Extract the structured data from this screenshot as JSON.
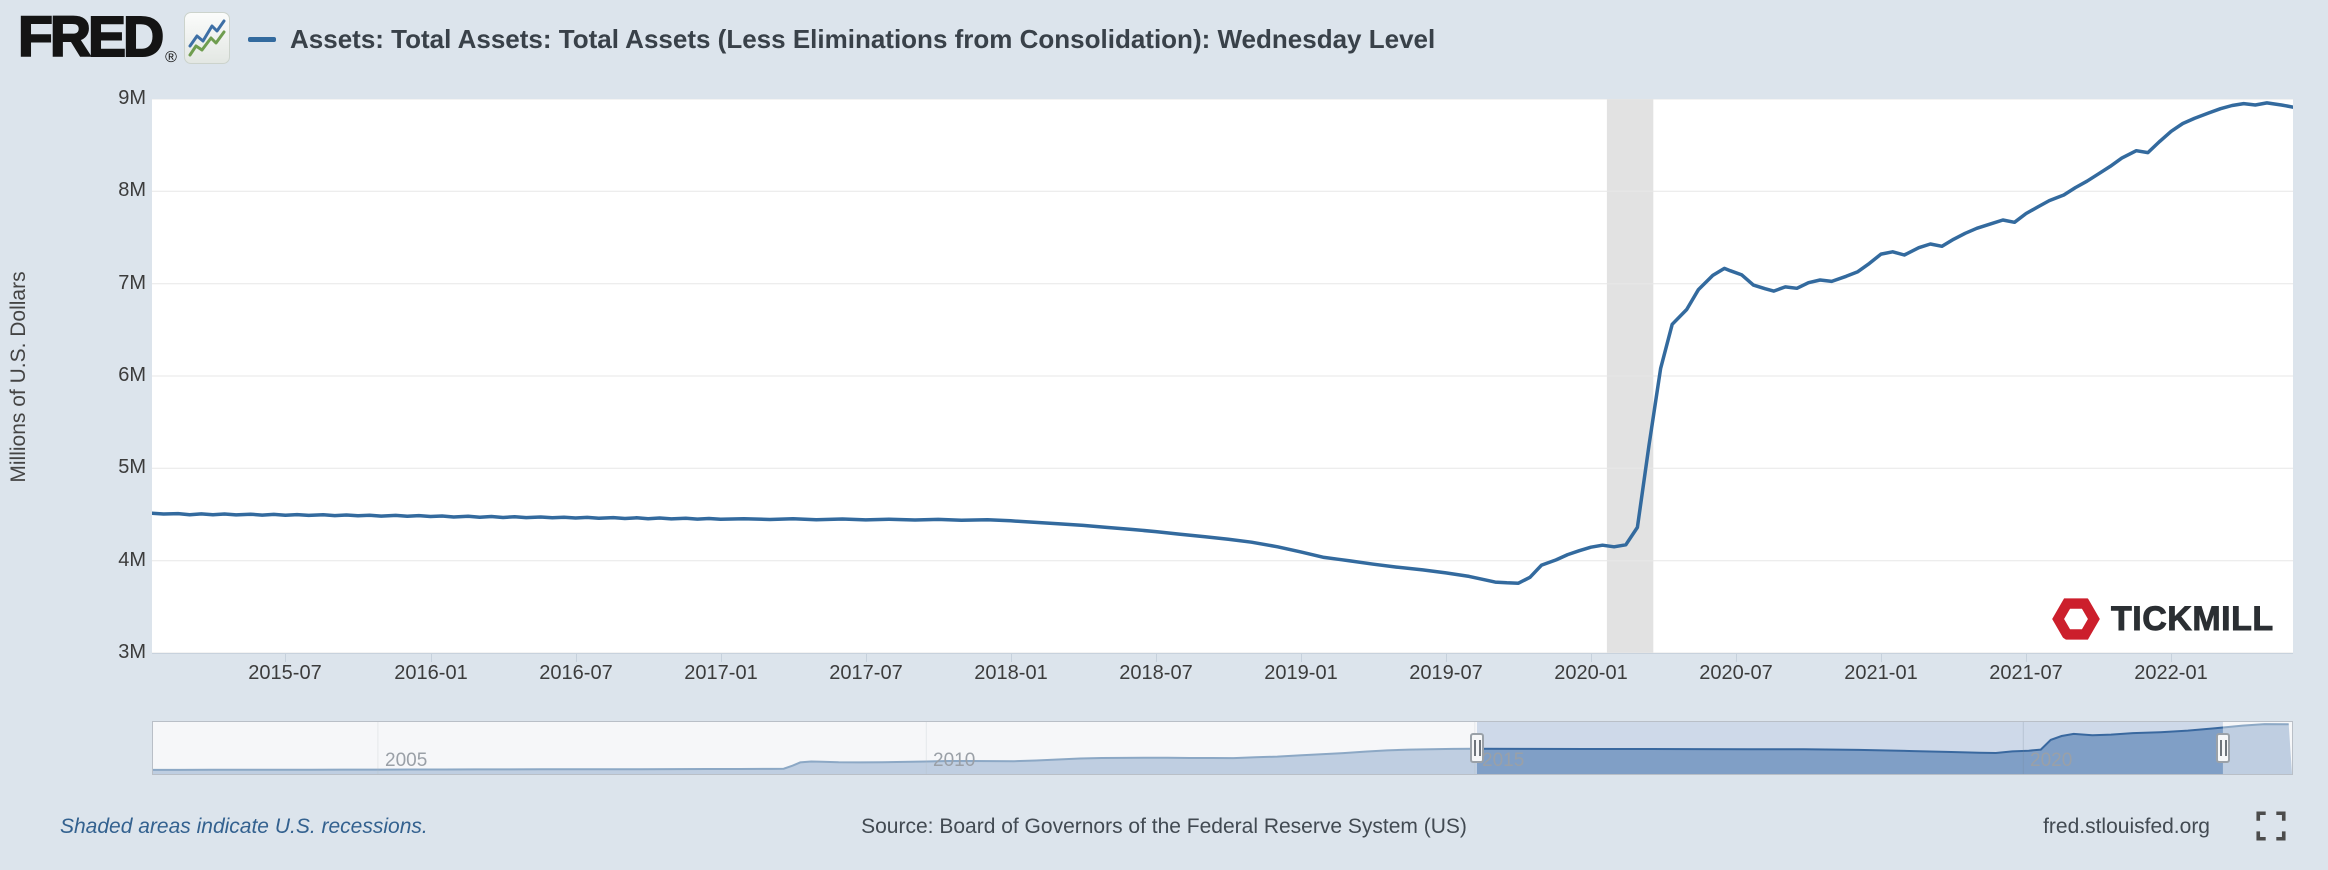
{
  "header": {
    "brand": "FRED",
    "registered_mark": "®",
    "series_legend": "Assets: Total Assets: Total Assets (Less Eliminations from Consolidation): Wednesday Level"
  },
  "colors": {
    "page_background": "#dce4ec",
    "plot_background": "#ffffff",
    "series_line": "#336a9e",
    "gridline": "#e7e7e7",
    "recession_band": "#e2e2e2",
    "axis_tick": "#c6d1dc",
    "navigator_fill": "#8aa7c8",
    "navigator_line": "#2f6196",
    "navigator_mask_inside": "rgba(95,130,190,0.22)",
    "navigator_mask_outside": "rgba(255,255,255,0.45)",
    "link_blue": "#33618f",
    "tickmill_red": "#cc1f2c"
  },
  "y_axis": {
    "title": "Millions of U.S. Dollars"
  },
  "footer": {
    "recessions_note": "Shaded areas indicate U.S. recessions.",
    "source": "Source: Board of Governors of the Federal Reserve System (US)",
    "site": "fred.stlouisfed.org"
  },
  "watermark": {
    "text": "TICKMILL"
  },
  "chart_data": {
    "type": "line",
    "title": "Assets: Total Assets: Total Assets (Less Eliminations from Consolidation): Wednesday Level",
    "ylabel": "Millions of U.S. Dollars",
    "unit": "millions of U.S. dollars",
    "ylim": [
      3000000,
      9000000
    ],
    "yticks": [
      {
        "value": 9000000,
        "label": "9M"
      },
      {
        "value": 8000000,
        "label": "8M"
      },
      {
        "value": 7000000,
        "label": "7M"
      },
      {
        "value": 6000000,
        "label": "6M"
      },
      {
        "value": 5000000,
        "label": "5M"
      },
      {
        "value": 4000000,
        "label": "4M"
      },
      {
        "value": 3000000,
        "label": "3M"
      }
    ],
    "x_range_decimal_years": [
      2015.04,
      2022.42
    ],
    "xticks": [
      {
        "year": 2015.5,
        "label": "2015-07"
      },
      {
        "year": 2016.0,
        "label": "2016-01"
      },
      {
        "year": 2016.5,
        "label": "2016-07"
      },
      {
        "year": 2017.0,
        "label": "2017-01"
      },
      {
        "year": 2017.5,
        "label": "2017-07"
      },
      {
        "year": 2018.0,
        "label": "2018-01"
      },
      {
        "year": 2018.5,
        "label": "2018-07"
      },
      {
        "year": 2019.0,
        "label": "2019-01"
      },
      {
        "year": 2019.5,
        "label": "2019-07"
      },
      {
        "year": 2020.0,
        "label": "2020-01"
      },
      {
        "year": 2020.5,
        "label": "2020-07"
      },
      {
        "year": 2021.0,
        "label": "2021-01"
      },
      {
        "year": 2021.5,
        "label": "2021-07"
      },
      {
        "year": 2022.0,
        "label": "2022-01"
      }
    ],
    "recession_bands_decimal_years": [
      [
        2020.055,
        2020.215
      ]
    ],
    "grid": "horizontal",
    "legend_position": "top",
    "series": [
      {
        "name": "Assets: Total Assets: Total Assets (Less Eliminations from Consolidation): Wednesday Level",
        "color": "#336a9e",
        "points": [
          [
            2015.04,
            4513000
          ],
          [
            2015.08,
            4505000
          ],
          [
            2015.13,
            4510000
          ],
          [
            2015.17,
            4498000
          ],
          [
            2015.21,
            4506000
          ],
          [
            2015.25,
            4497000
          ],
          [
            2015.29,
            4505000
          ],
          [
            2015.33,
            4496000
          ],
          [
            2015.38,
            4503000
          ],
          [
            2015.42,
            4494000
          ],
          [
            2015.46,
            4501000
          ],
          [
            2015.5,
            4492000
          ],
          [
            2015.54,
            4499000
          ],
          [
            2015.58,
            4490000
          ],
          [
            2015.63,
            4497000
          ],
          [
            2015.67,
            4488000
          ],
          [
            2015.71,
            4495000
          ],
          [
            2015.75,
            4486000
          ],
          [
            2015.79,
            4492000
          ],
          [
            2015.83,
            4483000
          ],
          [
            2015.88,
            4490000
          ],
          [
            2015.92,
            4481000
          ],
          [
            2015.96,
            4488000
          ],
          [
            2016.0,
            4478000
          ],
          [
            2016.04,
            4484000
          ],
          [
            2016.08,
            4473000
          ],
          [
            2016.13,
            4481000
          ],
          [
            2016.17,
            4470000
          ],
          [
            2016.21,
            4478000
          ],
          [
            2016.25,
            4468000
          ],
          [
            2016.29,
            4476000
          ],
          [
            2016.33,
            4466000
          ],
          [
            2016.38,
            4473000
          ],
          [
            2016.42,
            4464000
          ],
          [
            2016.46,
            4471000
          ],
          [
            2016.5,
            4462000
          ],
          [
            2016.54,
            4469000
          ],
          [
            2016.58,
            4459000
          ],
          [
            2016.63,
            4466000
          ],
          [
            2016.67,
            4457000
          ],
          [
            2016.71,
            4464000
          ],
          [
            2016.75,
            4455000
          ],
          [
            2016.79,
            4462000
          ],
          [
            2016.83,
            4452000
          ],
          [
            2016.88,
            4459000
          ],
          [
            2016.92,
            4450000
          ],
          [
            2016.96,
            4457000
          ],
          [
            2017.0,
            4448000
          ],
          [
            2017.08,
            4455000
          ],
          [
            2017.17,
            4446000
          ],
          [
            2017.25,
            4453000
          ],
          [
            2017.33,
            4444000
          ],
          [
            2017.42,
            4451000
          ],
          [
            2017.5,
            4442000
          ],
          [
            2017.58,
            4449000
          ],
          [
            2017.67,
            4440000
          ],
          [
            2017.75,
            4447000
          ],
          [
            2017.83,
            4437000
          ],
          [
            2017.92,
            4443000
          ],
          [
            2018.0,
            4432000
          ],
          [
            2018.08,
            4415000
          ],
          [
            2018.17,
            4398000
          ],
          [
            2018.25,
            4382000
          ],
          [
            2018.33,
            4360000
          ],
          [
            2018.42,
            4338000
          ],
          [
            2018.5,
            4315000
          ],
          [
            2018.58,
            4288000
          ],
          [
            2018.67,
            4260000
          ],
          [
            2018.75,
            4232000
          ],
          [
            2018.83,
            4200000
          ],
          [
            2018.92,
            4150000
          ],
          [
            2019.0,
            4095000
          ],
          [
            2019.08,
            4035000
          ],
          [
            2019.13,
            4015000
          ],
          [
            2019.17,
            3998000
          ],
          [
            2019.25,
            3962000
          ],
          [
            2019.33,
            3930000
          ],
          [
            2019.42,
            3900000
          ],
          [
            2019.5,
            3868000
          ],
          [
            2019.58,
            3830000
          ],
          [
            2019.63,
            3795000
          ],
          [
            2019.67,
            3768000
          ],
          [
            2019.71,
            3760000
          ],
          [
            2019.75,
            3756000
          ],
          [
            2019.79,
            3820000
          ],
          [
            2019.83,
            3952000
          ],
          [
            2019.88,
            4008000
          ],
          [
            2019.92,
            4066000
          ],
          [
            2019.96,
            4108000
          ],
          [
            2020.0,
            4146000
          ],
          [
            2020.04,
            4168000
          ],
          [
            2020.08,
            4150000
          ],
          [
            2020.12,
            4172000
          ],
          [
            2020.16,
            4360000
          ],
          [
            2020.2,
            5250000
          ],
          [
            2020.24,
            6080000
          ],
          [
            2020.28,
            6560000
          ],
          [
            2020.33,
            6720000
          ],
          [
            2020.37,
            6934000
          ],
          [
            2020.42,
            7090000
          ],
          [
            2020.46,
            7165000
          ],
          [
            2020.48,
            7140000
          ],
          [
            2020.52,
            7095000
          ],
          [
            2020.56,
            6985000
          ],
          [
            2020.6,
            6945000
          ],
          [
            2020.63,
            6920000
          ],
          [
            2020.67,
            6965000
          ],
          [
            2020.71,
            6950000
          ],
          [
            2020.75,
            7010000
          ],
          [
            2020.79,
            7040000
          ],
          [
            2020.83,
            7025000
          ],
          [
            2020.88,
            7080000
          ],
          [
            2020.92,
            7130000
          ],
          [
            2020.96,
            7220000
          ],
          [
            2021.0,
            7320000
          ],
          [
            2021.04,
            7345000
          ],
          [
            2021.08,
            7310000
          ],
          [
            2021.13,
            7390000
          ],
          [
            2021.17,
            7430000
          ],
          [
            2021.21,
            7405000
          ],
          [
            2021.25,
            7480000
          ],
          [
            2021.29,
            7545000
          ],
          [
            2021.33,
            7600000
          ],
          [
            2021.38,
            7650000
          ],
          [
            2021.42,
            7690000
          ],
          [
            2021.46,
            7665000
          ],
          [
            2021.5,
            7760000
          ],
          [
            2021.54,
            7830000
          ],
          [
            2021.58,
            7900000
          ],
          [
            2021.63,
            7960000
          ],
          [
            2021.67,
            8040000
          ],
          [
            2021.71,
            8110000
          ],
          [
            2021.75,
            8190000
          ],
          [
            2021.79,
            8270000
          ],
          [
            2021.83,
            8360000
          ],
          [
            2021.88,
            8440000
          ],
          [
            2021.92,
            8420000
          ],
          [
            2021.96,
            8540000
          ],
          [
            2022.0,
            8650000
          ],
          [
            2022.04,
            8735000
          ],
          [
            2022.08,
            8790000
          ],
          [
            2022.13,
            8850000
          ],
          [
            2022.17,
            8895000
          ],
          [
            2022.21,
            8930000
          ],
          [
            2022.25,
            8950000
          ],
          [
            2022.29,
            8935000
          ],
          [
            2022.33,
            8958000
          ],
          [
            2022.38,
            8935000
          ],
          [
            2022.42,
            8912000
          ]
        ]
      }
    ],
    "navigator": {
      "x_range_decimal_years": [
        2002.95,
        2022.45
      ],
      "ymax": 9300000,
      "year_ticks": [
        {
          "year": 2005,
          "label": "2005"
        },
        {
          "year": 2010,
          "label": "2010"
        },
        {
          "year": 2015,
          "label": "2015"
        },
        {
          "year": 2020,
          "label": "2020"
        }
      ],
      "handles_decimal_years": [
        2015.02,
        2021.82
      ],
      "points": [
        [
          2002.95,
          725000
        ],
        [
          2003.2,
          740000
        ],
        [
          2003.5,
          748000
        ],
        [
          2003.8,
          755000
        ],
        [
          2004.1,
          762000
        ],
        [
          2004.4,
          772000
        ],
        [
          2004.7,
          780000
        ],
        [
          2005.0,
          792000
        ],
        [
          2005.3,
          798000
        ],
        [
          2005.6,
          806000
        ],
        [
          2005.9,
          815000
        ],
        [
          2006.2,
          824000
        ],
        [
          2006.5,
          832000
        ],
        [
          2006.8,
          842000
        ],
        [
          2007.1,
          852000
        ],
        [
          2007.4,
          862000
        ],
        [
          2007.7,
          872000
        ],
        [
          2008.0,
          890000
        ],
        [
          2008.3,
          900000
        ],
        [
          2008.6,
          910000
        ],
        [
          2008.7,
          945000
        ],
        [
          2008.78,
          1480000
        ],
        [
          2008.85,
          2080000
        ],
        [
          2008.95,
          2240000
        ],
        [
          2009.05,
          2180000
        ],
        [
          2009.2,
          2100000
        ],
        [
          2009.4,
          2070000
        ],
        [
          2009.6,
          2110000
        ],
        [
          2009.8,
          2160000
        ],
        [
          2010.0,
          2240000
        ],
        [
          2010.2,
          2320000
        ],
        [
          2010.4,
          2330000
        ],
        [
          2010.6,
          2310000
        ],
        [
          2010.8,
          2290000
        ],
        [
          2011.0,
          2420000
        ],
        [
          2011.2,
          2600000
        ],
        [
          2011.4,
          2780000
        ],
        [
          2011.6,
          2860000
        ],
        [
          2011.8,
          2880000
        ],
        [
          2012.0,
          2920000
        ],
        [
          2012.2,
          2890000
        ],
        [
          2012.4,
          2870000
        ],
        [
          2012.6,
          2860000
        ],
        [
          2012.8,
          2850000
        ],
        [
          2013.0,
          2990000
        ],
        [
          2013.2,
          3120000
        ],
        [
          2013.4,
          3320000
        ],
        [
          2013.6,
          3520000
        ],
        [
          2013.8,
          3740000
        ],
        [
          2014.0,
          4000000
        ],
        [
          2014.2,
          4220000
        ],
        [
          2014.4,
          4360000
        ],
        [
          2014.6,
          4440000
        ],
        [
          2014.8,
          4490000
        ],
        [
          2015.0,
          4512000
        ],
        [
          2015.5,
          4495000
        ],
        [
          2016.0,
          4478000
        ],
        [
          2016.5,
          4470000
        ],
        [
          2017.0,
          4448000
        ],
        [
          2017.5,
          4442000
        ],
        [
          2018.0,
          4432000
        ],
        [
          2018.5,
          4315000
        ],
        [
          2019.0,
          4095000
        ],
        [
          2019.3,
          3945000
        ],
        [
          2019.6,
          3790000
        ],
        [
          2019.75,
          3756000
        ],
        [
          2019.9,
          4050000
        ],
        [
          2020.05,
          4160000
        ],
        [
          2020.16,
          4360000
        ],
        [
          2020.25,
          6100000
        ],
        [
          2020.35,
          6800000
        ],
        [
          2020.46,
          7165000
        ],
        [
          2020.63,
          6920000
        ],
        [
          2020.8,
          7040000
        ],
        [
          2021.0,
          7320000
        ],
        [
          2021.25,
          7480000
        ],
        [
          2021.5,
          7760000
        ],
        [
          2021.75,
          8190000
        ],
        [
          2022.0,
          8650000
        ],
        [
          2022.2,
          8930000
        ],
        [
          2022.42,
          8912000
        ]
      ]
    }
  }
}
